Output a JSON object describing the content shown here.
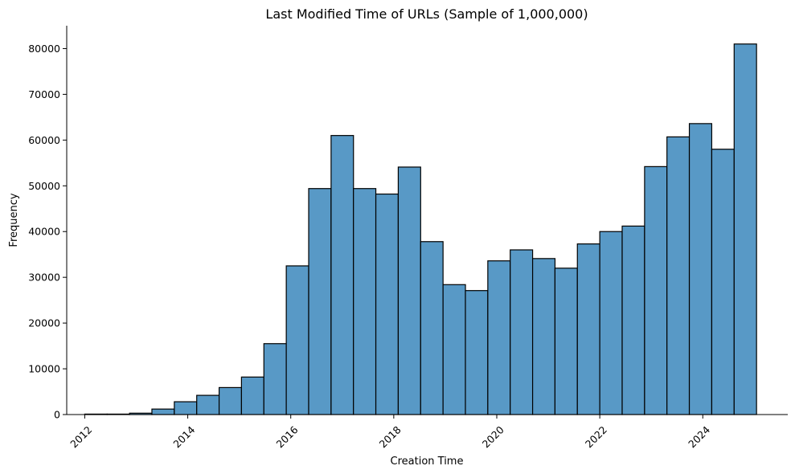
{
  "chart_data": {
    "type": "bar",
    "title": "Last Modified Time of URLs (Sample of 1,000,000)",
    "xlabel": "Creation Time",
    "ylabel": "Frequency",
    "xlim": [
      2011.65,
      2025.65
    ],
    "ylim": [
      0,
      85000
    ],
    "x_ticks": [
      2012,
      2014,
      2016,
      2018,
      2020,
      2022,
      2024
    ],
    "y_ticks": [
      0,
      10000,
      20000,
      30000,
      40000,
      50000,
      60000,
      70000,
      80000
    ],
    "grid": false,
    "bar_color": "#5899c6",
    "bin_width": 0.4348,
    "bin_starts": [
      2012.0,
      2012.435,
      2012.87,
      2013.304,
      2013.739,
      2014.174,
      2014.609,
      2015.043,
      2015.478,
      2015.913,
      2016.348,
      2016.783,
      2017.217,
      2017.652,
      2018.087,
      2018.522,
      2018.957,
      2019.391,
      2019.826,
      2020.261,
      2020.696,
      2021.13,
      2021.565,
      2022.0,
      2022.435,
      2022.87,
      2023.304,
      2023.739,
      2024.174,
      2024.609
    ],
    "values": [
      100,
      100,
      300,
      1200,
      2800,
      4200,
      5900,
      8200,
      15500,
      32500,
      49400,
      61000,
      49400,
      48200,
      54100,
      37800,
      28400,
      27100,
      33600,
      36000,
      34100,
      32000,
      37300,
      40000,
      41200,
      54200,
      60700,
      63600,
      58000,
      81000
    ]
  }
}
